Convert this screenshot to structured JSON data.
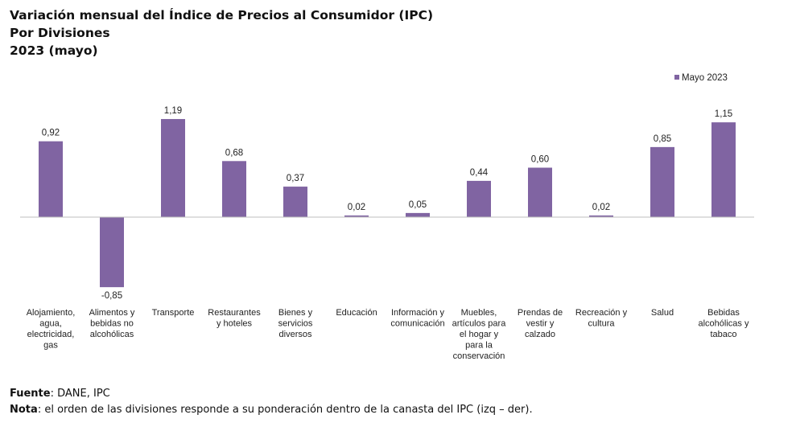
{
  "chart_data": {
    "type": "bar",
    "title_lines": [
      "Variación mensual del Índice de Precios al Consumidor (IPC)",
      "Por Divisiones",
      "2023 (mayo)"
    ],
    "categories": [
      [
        "Alojamiento,",
        "agua,",
        "electricidad,",
        "gas"
      ],
      [
        "Alimentos y",
        "bebidas no",
        "alcohólicas"
      ],
      [
        "Transporte"
      ],
      [
        "Restaurantes",
        "y hoteles"
      ],
      [
        "Bienes y",
        "servicios",
        "diversos"
      ],
      [
        "Educación"
      ],
      [
        "Información y",
        "comunicación"
      ],
      [
        "Muebles,",
        "artículos para",
        "el hogar y",
        "para la",
        "conservación"
      ],
      [
        "Prendas de",
        "vestir y",
        "calzado"
      ],
      [
        "Recreación y",
        "cultura"
      ],
      [
        "Salud"
      ],
      [
        "Bebidas",
        "alcohólicas y",
        "tabaco"
      ]
    ],
    "series": [
      {
        "name": "Mayo 2023",
        "values": [
          0.92,
          -0.85,
          1.19,
          0.68,
          0.37,
          0.02,
          0.05,
          0.44,
          0.6,
          0.02,
          0.85,
          1.15
        ],
        "labels": [
          "0,92",
          "-0,85",
          "1,19",
          "0,68",
          "0,37",
          "0,02",
          "0,05",
          "0,44",
          "0,60",
          "0,02",
          "0,85",
          "1,15"
        ],
        "color": "#8064a2"
      }
    ],
    "legend": "top-right",
    "grid": false,
    "ylim": [
      -0.85,
      1.19
    ]
  },
  "footer": {
    "source_label": "Fuente",
    "source_text": ": DANE, IPC",
    "note_label": "Nota",
    "note_text": ": el orden de las divisiones responde a su ponderación dentro de la canasta del IPC (izq – der)."
  }
}
